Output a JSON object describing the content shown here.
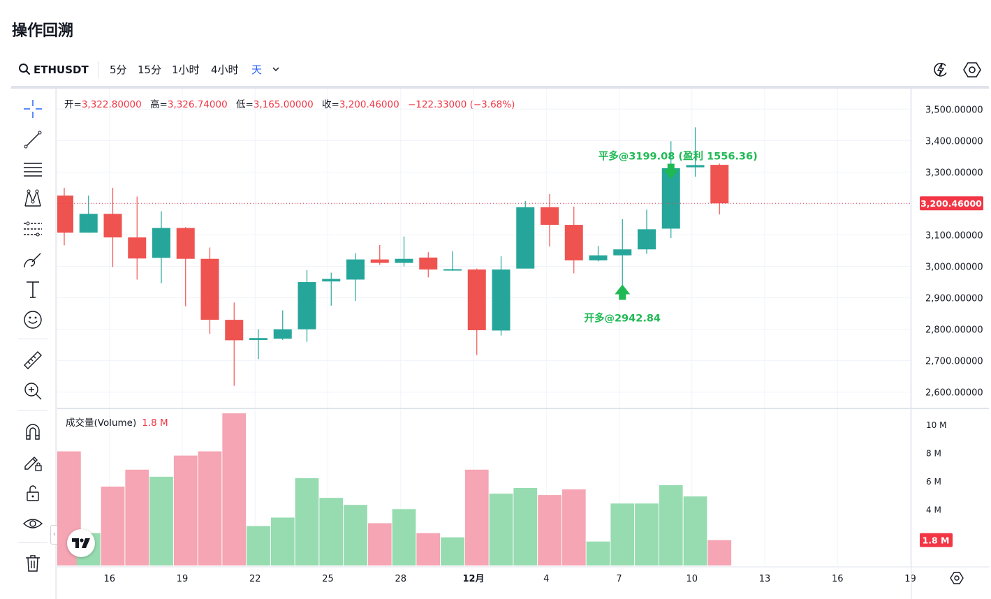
{
  "page": {
    "title": "操作回溯"
  },
  "toolbar": {
    "symbol": "ETHUSDT",
    "timeframes": [
      "5分",
      "15分",
      "1小时",
      "4小时",
      "天"
    ],
    "active_timeframe": "天",
    "right_icons": [
      "replay-lightning-icon",
      "settings-hexagon-icon"
    ]
  },
  "left_tools": [
    "crosshair-icon",
    "trendline-icon",
    "horizontal-lines-icon",
    "pattern-icon",
    "fib-icon",
    "brush-icon",
    "text-icon",
    "emoji-icon",
    "ruler-icon",
    "zoom-in-icon",
    "magnet-icon",
    "lock-pencil-icon",
    "unlock-icon",
    "eye-icon",
    "trash-icon"
  ],
  "legend": {
    "open_label": "开=",
    "open": "3,322.80000",
    "high_label": "高=",
    "high": "3,326.74000",
    "low_label": "低=",
    "low": "3,165.00000",
    "close_label": "收=",
    "close": "3,200.46000",
    "change": "−122.33000 (−3.68%)"
  },
  "volume_legend": {
    "label": "成交量(Volume)",
    "value": "1.8 M"
  },
  "colors": {
    "up": "#26a69a",
    "down": "#ef5350",
    "up_volume": "#96dcb0",
    "down_volume": "#f5a5b3",
    "marker": "#1fb954",
    "price_tag": "#f23645"
  },
  "chart_data": {
    "type": "candlestick",
    "price_axis": {
      "ticks": [
        "3,500.00000",
        "3,400.00000",
        "3,300.00000",
        "3,200.00000",
        "3,100.00000",
        "3,000.00000",
        "2,900.00000",
        "2,800.00000",
        "2,700.00000",
        "2,600.00000"
      ],
      "tick_values": [
        3500,
        3400,
        3300,
        3200,
        3100,
        3000,
        2900,
        2800,
        2700,
        2600
      ],
      "range": [
        2555,
        3565
      ]
    },
    "volume_axis": {
      "ticks": [
        "10 M",
        "8 M",
        "6 M",
        "4 M"
      ],
      "tick_values": [
        10,
        8,
        6,
        4
      ],
      "range": [
        0,
        11
      ],
      "unit": "M"
    },
    "time_axis": {
      "labels": [
        "16",
        "19",
        "22",
        "25",
        "28",
        "12月",
        "4",
        "7",
        "10",
        "13",
        "16",
        "19"
      ],
      "label_index": [
        1,
        4,
        7,
        10,
        13,
        16,
        19,
        22,
        25,
        28,
        31,
        34
      ]
    },
    "last_price": "3,200.46000",
    "last_price_value": 3200.46,
    "last_volume": "1.8 M",
    "candles": [
      {
        "o": 3225,
        "h": 3250,
        "l": 3067,
        "c": 3107,
        "v": 8.1
      },
      {
        "o": 3107,
        "h": 3225,
        "l": 3107,
        "c": 3167,
        "v": 2.3
      },
      {
        "o": 3167,
        "h": 3250,
        "l": 2998,
        "c": 3092,
        "v": 5.6
      },
      {
        "o": 3092,
        "h": 3222,
        "l": 2958,
        "c": 3025,
        "v": 6.8
      },
      {
        "o": 3027,
        "h": 3175,
        "l": 2946,
        "c": 3122,
        "v": 6.3
      },
      {
        "o": 3122,
        "h": 3125,
        "l": 2873,
        "c": 3024,
        "v": 7.8
      },
      {
        "o": 3024,
        "h": 3060,
        "l": 2785,
        "c": 2830,
        "v": 8.1
      },
      {
        "o": 2830,
        "h": 2885,
        "l": 2620,
        "c": 2765,
        "v": 10.8
      },
      {
        "o": 2766,
        "h": 2800,
        "l": 2705,
        "c": 2772,
        "v": 2.8
      },
      {
        "o": 2770,
        "h": 2860,
        "l": 2766,
        "c": 2800,
        "v": 3.4
      },
      {
        "o": 2800,
        "h": 2988,
        "l": 2760,
        "c": 2950,
        "v": 6.2
      },
      {
        "o": 2952,
        "h": 2980,
        "l": 2875,
        "c": 2960,
        "v": 4.8
      },
      {
        "o": 2958,
        "h": 3042,
        "l": 2890,
        "c": 3022,
        "v": 4.3
      },
      {
        "o": 3022,
        "h": 3068,
        "l": 3005,
        "c": 3011,
        "v": 3.0
      },
      {
        "o": 3011,
        "h": 3095,
        "l": 3000,
        "c": 3024,
        "v": 4.0
      },
      {
        "o": 3028,
        "h": 3045,
        "l": 2965,
        "c": 2990,
        "v": 2.3
      },
      {
        "o": 2990,
        "h": 3048,
        "l": 2986,
        "c": 2991,
        "v": 2.0
      },
      {
        "o": 2990,
        "h": 2993,
        "l": 2718,
        "c": 2797,
        "v": 6.8
      },
      {
        "o": 2796,
        "h": 3032,
        "l": 2780,
        "c": 2990,
        "v": 5.1
      },
      {
        "o": 2993,
        "h": 3208,
        "l": 2993,
        "c": 3188,
        "v": 5.5
      },
      {
        "o": 3188,
        "h": 3230,
        "l": 3063,
        "c": 3132,
        "v": 5.0
      },
      {
        "o": 3132,
        "h": 3190,
        "l": 2978,
        "c": 3019,
        "v": 5.4
      },
      {
        "o": 3019,
        "h": 3065,
        "l": 3016,
        "c": 3035,
        "v": 1.7
      },
      {
        "o": 3035,
        "h": 3150,
        "l": 2915,
        "c": 3054,
        "v": 4.4
      },
      {
        "o": 3054,
        "h": 3180,
        "l": 3040,
        "c": 3118,
        "v": 4.4
      },
      {
        "o": 3120,
        "h": 3398,
        "l": 3090,
        "c": 3312,
        "v": 5.7
      },
      {
        "o": 3315,
        "h": 3442,
        "l": 3285,
        "c": 3322,
        "v": 4.9
      },
      {
        "o": 3322.8,
        "h": 3326.74,
        "l": 3165,
        "c": 3200.46,
        "v": 1.8
      }
    ],
    "annotations": [
      {
        "text": "平多@3199.08 (盈利 1556.36)",
        "type": "sell-arrow",
        "candle_index": 25,
        "price": 3302
      },
      {
        "text": "开多@2942.84",
        "type": "buy-arrow",
        "candle_index": 23,
        "price": 2918
      }
    ]
  }
}
